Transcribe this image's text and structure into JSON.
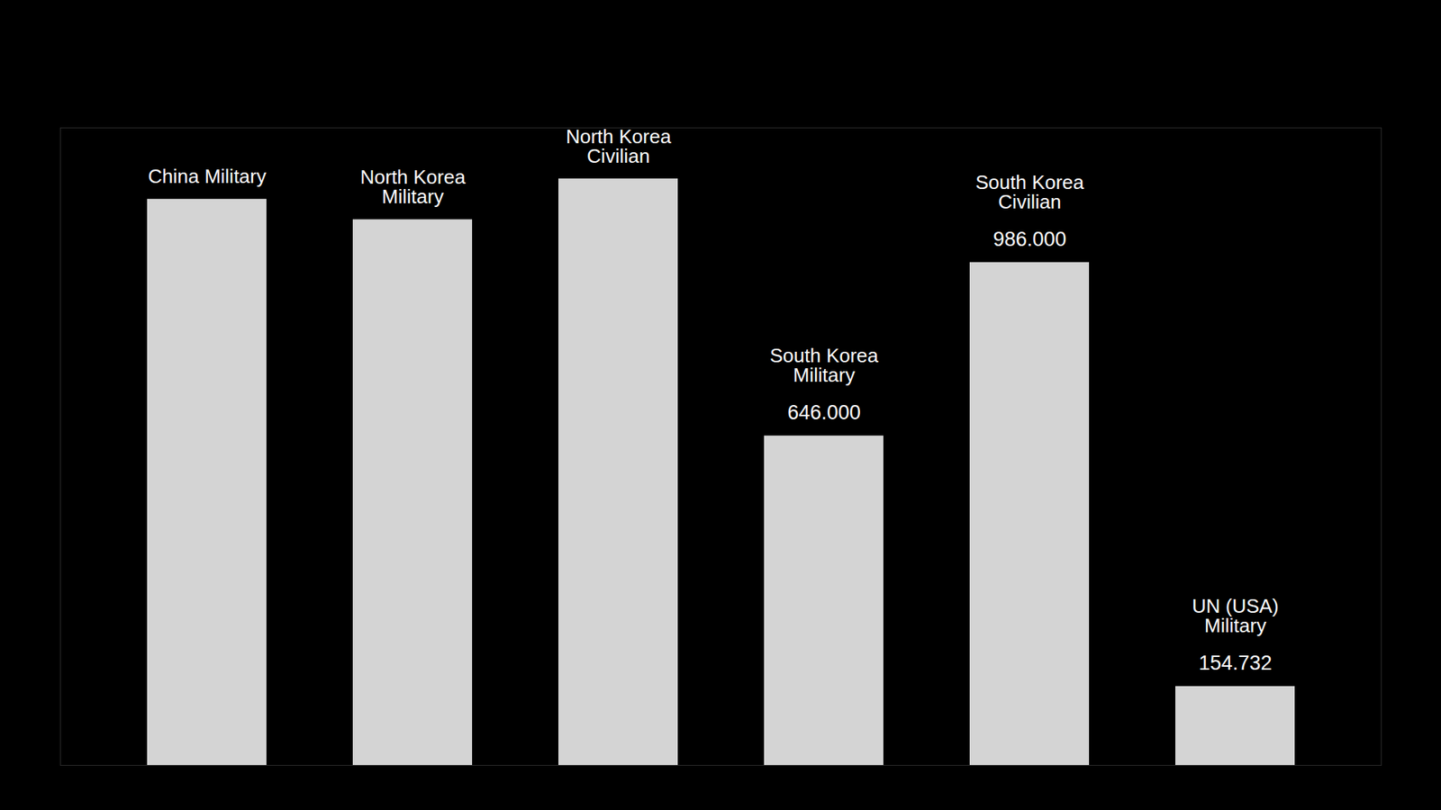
{
  "chart_data": {
    "type": "bar",
    "categories": [
      "China Military",
      "North Korea Military",
      "North Korea Civilian",
      "South Korea Military",
      "South Korea Civilian",
      "UN (USA) Military"
    ],
    "values": [
      1110000,
      1070000,
      1150000,
      646000,
      986000,
      154732
    ],
    "value_labels": [
      null,
      null,
      null,
      "646.000",
      "986.000",
      "154.732"
    ],
    "color": "#d4d4d4",
    "ylim": [
      0,
      1250000
    ],
    "data_labels": true,
    "tick_labels": false,
    "grid": false
  }
}
